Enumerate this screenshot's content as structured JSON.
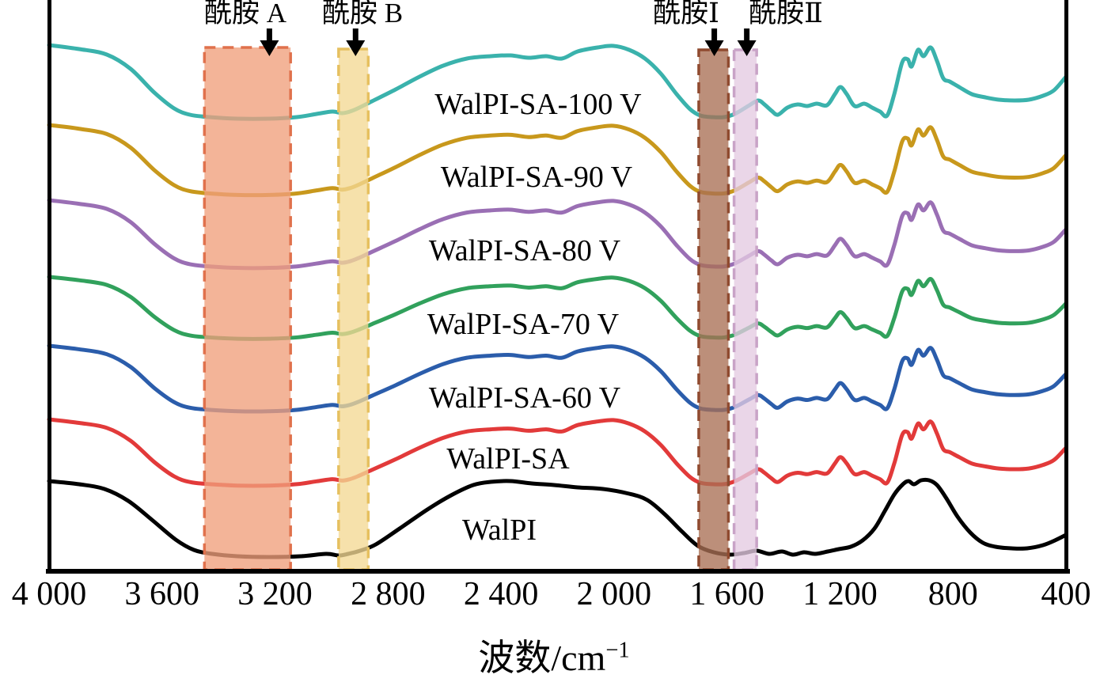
{
  "figure": {
    "background": "#ffffff",
    "axis_color": "#000000",
    "text_color": "#000000"
  },
  "chart_data": {
    "type": "line",
    "title": "",
    "xlabel": "波数/cm",
    "xlabel_sup": "−1",
    "x_axis": {
      "max": 4000,
      "min": 400,
      "direction": "decreasing",
      "unit": "cm−1"
    },
    "x_ticks": [
      {
        "label": "4 000",
        "value": 4000
      },
      {
        "label": "3 600",
        "value": 3600
      },
      {
        "label": "3 200",
        "value": 3200
      },
      {
        "label": "2 800",
        "value": 2800
      },
      {
        "label": "2 400",
        "value": 2400
      },
      {
        "label": "2 000",
        "value": 2000
      },
      {
        "label": "1 600",
        "value": 1600
      },
      {
        "label": "1 200",
        "value": 1200
      },
      {
        "label": "800",
        "value": 800
      },
      {
        "label": "400",
        "value": 400
      }
    ],
    "y_axis": {
      "label": "",
      "ticks": []
    },
    "bands": [
      {
        "label": "酰胺 A",
        "x_from_cm": 3450,
        "x_to_cm": 3145,
        "arrow_cm": 3220,
        "fill": "#F09F7B",
        "stroke": "#E0714C"
      },
      {
        "label": "酰胺 B",
        "x_from_cm": 2975,
        "x_to_cm": 2870,
        "arrow_cm": 2915,
        "fill": "#F4D893",
        "stroke": "#E6C05F"
      },
      {
        "label": "酰胺Ⅰ",
        "x_from_cm": 1700,
        "x_to_cm": 1595,
        "arrow_cm": 1645,
        "fill": "#A97055",
        "stroke": "#8F4A2F"
      },
      {
        "label": "酰胺Ⅱ",
        "x_from_cm": 1575,
        "x_to_cm": 1495,
        "arrow_cm": 1530,
        "fill": "#E4CBE2",
        "stroke": "#C9A3C7"
      }
    ],
    "series": [
      {
        "name": "WalPI-SA-100 V",
        "color": "#3AB2AC",
        "baseline_y": 57,
        "amplitude": 1.0,
        "profile": "modified"
      },
      {
        "name": "WalPI-SA-90 V",
        "color": "#C8981C",
        "baseline_y": 158,
        "amplitude": 0.95,
        "profile": "modified"
      },
      {
        "name": "WalPI-SA-80 V",
        "color": "#9A6FB4",
        "baseline_y": 253,
        "amplitude": 0.92,
        "profile": "modified"
      },
      {
        "name": "WalPI-SA-70 V",
        "color": "#31A15C",
        "baseline_y": 350,
        "amplitude": 0.84,
        "profile": "modified"
      },
      {
        "name": "WalPI-SA-60 V",
        "color": "#2B5DAB",
        "baseline_y": 437,
        "amplitude": 0.89,
        "profile": "modified"
      },
      {
        "name": "WalPI-SA",
        "color": "#E23A3A",
        "baseline_y": 530,
        "amplitude": 0.9,
        "profile": "modified"
      },
      {
        "name": "WalPI",
        "color": "#000000",
        "baseline_y": 608,
        "amplitude": 1.0,
        "profile": "walpi"
      }
    ],
    "profiles": {
      "modified": [
        [
          62,
          0
        ],
        [
          100,
          5
        ],
        [
          135,
          12
        ],
        [
          165,
          30
        ],
        [
          195,
          60
        ],
        [
          220,
          80
        ],
        [
          240,
          88
        ],
        [
          265,
          91
        ],
        [
          300,
          93
        ],
        [
          340,
          93
        ],
        [
          375,
          91
        ],
        [
          400,
          87
        ],
        [
          420,
          84
        ],
        [
          432,
          86
        ],
        [
          442,
          84
        ],
        [
          452,
          80
        ],
        [
          470,
          71
        ],
        [
          500,
          56
        ],
        [
          530,
          40
        ],
        [
          560,
          26
        ],
        [
          590,
          17
        ],
        [
          620,
          14
        ],
        [
          645,
          13
        ],
        [
          668,
          16
        ],
        [
          690,
          14
        ],
        [
          710,
          17
        ],
        [
          730,
          8
        ],
        [
          755,
          3
        ],
        [
          775,
          1
        ],
        [
          795,
          6
        ],
        [
          815,
          17
        ],
        [
          835,
          36
        ],
        [
          855,
          62
        ],
        [
          872,
          81
        ],
        [
          885,
          89
        ],
        [
          900,
          91
        ],
        [
          915,
          91
        ],
        [
          926,
          88
        ],
        [
          934,
          84
        ],
        [
          947,
          76
        ],
        [
          958,
          70
        ],
        [
          966,
          75
        ],
        [
          975,
          83
        ],
        [
          983,
          88
        ],
        [
          995,
          79
        ],
        [
          1008,
          75
        ],
        [
          1020,
          77
        ],
        [
          1032,
          74
        ],
        [
          1045,
          76
        ],
        [
          1055,
          62
        ],
        [
          1062,
          53
        ],
        [
          1070,
          62
        ],
        [
          1080,
          77
        ],
        [
          1092,
          74
        ],
        [
          1102,
          79
        ],
        [
          1112,
          84
        ],
        [
          1121,
          89
        ],
        [
          1130,
          62
        ],
        [
          1140,
          22
        ],
        [
          1147,
          18
        ],
        [
          1152,
          27
        ],
        [
          1160,
          6
        ],
        [
          1167,
          14
        ],
        [
          1176,
          3
        ],
        [
          1184,
          20
        ],
        [
          1192,
          42
        ],
        [
          1200,
          46
        ],
        [
          1212,
          53
        ],
        [
          1228,
          62
        ],
        [
          1245,
          66
        ],
        [
          1262,
          69
        ],
        [
          1282,
          70
        ],
        [
          1300,
          69
        ],
        [
          1318,
          64
        ],
        [
          1332,
          57
        ],
        [
          1347,
          40
        ]
      ],
      "walpi": [
        [
          62,
          608
        ],
        [
          100,
          612
        ],
        [
          132,
          618
        ],
        [
          162,
          633
        ],
        [
          192,
          657
        ],
        [
          222,
          682
        ],
        [
          245,
          695
        ],
        [
          268,
          700
        ],
        [
          300,
          703
        ],
        [
          340,
          704
        ],
        [
          380,
          703
        ],
        [
          412,
          700
        ],
        [
          428,
          702
        ],
        [
          440,
          700
        ],
        [
          455,
          696
        ],
        [
          475,
          688
        ],
        [
          505,
          668
        ],
        [
          540,
          644
        ],
        [
          570,
          626
        ],
        [
          598,
          613
        ],
        [
          620,
          609
        ],
        [
          645,
          608
        ],
        [
          672,
          611
        ],
        [
          700,
          613
        ],
        [
          730,
          616
        ],
        [
          762,
          618
        ],
        [
          795,
          624
        ],
        [
          818,
          632
        ],
        [
          840,
          650
        ],
        [
          862,
          672
        ],
        [
          882,
          690
        ],
        [
          902,
          698
        ],
        [
          922,
          701
        ],
        [
          940,
          699
        ],
        [
          956,
          696
        ],
        [
          972,
          700
        ],
        [
          988,
          697
        ],
        [
          1002,
          701
        ],
        [
          1016,
          698
        ],
        [
          1030,
          700
        ],
        [
          1046,
          697
        ],
        [
          1060,
          694
        ],
        [
          1075,
          691
        ],
        [
          1090,
          683
        ],
        [
          1105,
          668
        ],
        [
          1118,
          646
        ],
        [
          1130,
          625
        ],
        [
          1141,
          612
        ],
        [
          1148,
          608
        ],
        [
          1155,
          612
        ],
        [
          1164,
          607
        ],
        [
          1174,
          607
        ],
        [
          1184,
          613
        ],
        [
          1196,
          630
        ],
        [
          1210,
          653
        ],
        [
          1226,
          673
        ],
        [
          1242,
          686
        ],
        [
          1258,
          691
        ],
        [
          1278,
          693
        ],
        [
          1298,
          693
        ],
        [
          1318,
          689
        ],
        [
          1333,
          683
        ],
        [
          1347,
          676
        ]
      ]
    }
  }
}
